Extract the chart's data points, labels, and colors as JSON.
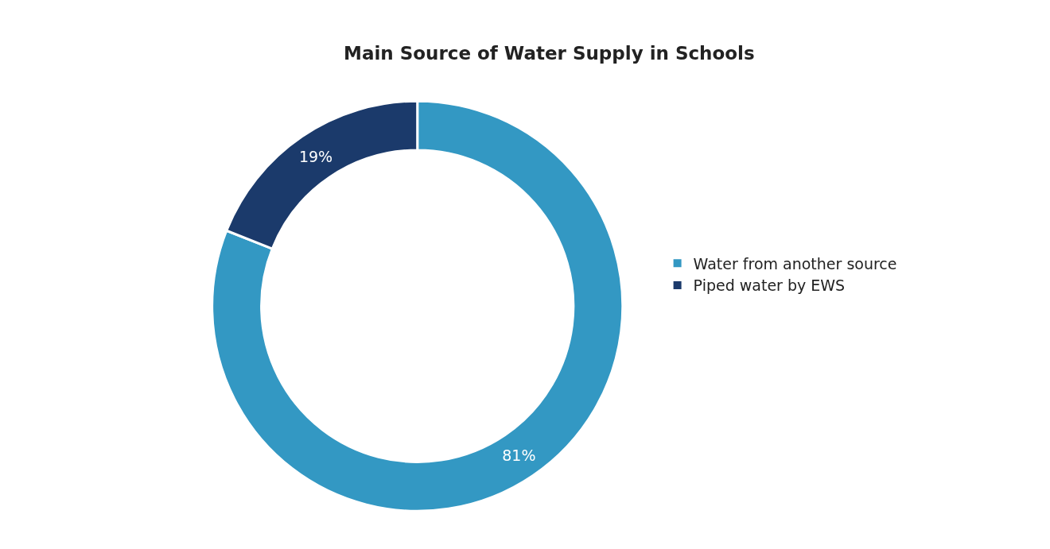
{
  "chart_data": {
    "type": "donut",
    "title": "Main Source of Water Supply in Schools",
    "categories": [
      "Water from another source",
      "Piped water by EWS"
    ],
    "values": [
      81,
      19
    ],
    "colors": [
      "#3398c3",
      "#1b3a6b"
    ],
    "value_labels": [
      "81%",
      "19%"
    ],
    "legend": "right"
  }
}
